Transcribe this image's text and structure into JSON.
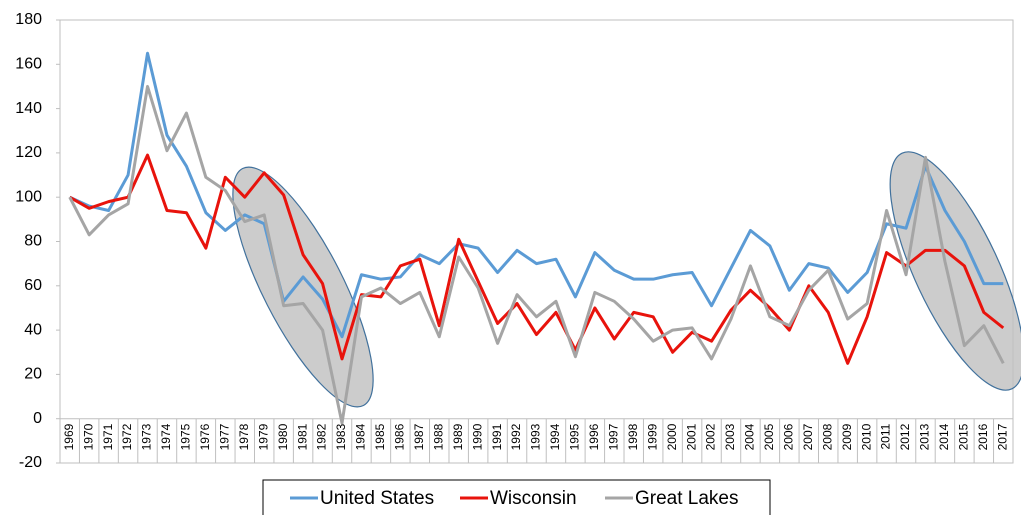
{
  "chart_data": {
    "type": "line",
    "categories": [
      "1969",
      "1970",
      "1971",
      "1972",
      "1973",
      "1974",
      "1975",
      "1976",
      "1977",
      "1978",
      "1979",
      "1980",
      "1981",
      "1982",
      "1983",
      "1984",
      "1985",
      "1986",
      "1987",
      "1988",
      "1989",
      "1990",
      "1991",
      "1992",
      "1993",
      "1994",
      "1995",
      "1996",
      "1997",
      "1998",
      "1999",
      "2000",
      "2001",
      "2002",
      "2003",
      "2004",
      "2005",
      "2006",
      "2007",
      "2008",
      "2009",
      "2010",
      "2011",
      "2012",
      "2013",
      "2014",
      "2015",
      "2016",
      "2017"
    ],
    "series": [
      {
        "name": "United States",
        "color": "#5b9bd5",
        "values": [
          100,
          96,
          94,
          110,
          165,
          128,
          114,
          93,
          85,
          92,
          88,
          53,
          64,
          54,
          37,
          65,
          63,
          64,
          74,
          70,
          79,
          77,
          66,
          76,
          70,
          72,
          55,
          75,
          67,
          63,
          63,
          65,
          66,
          51,
          68,
          85,
          78,
          58,
          70,
          68,
          57,
          66,
          88,
          86,
          114,
          94,
          80,
          61,
          61
        ]
      },
      {
        "name": "Wisconsin",
        "color": "#e8130c",
        "values": [
          100,
          95,
          98,
          100,
          119,
          94,
          93,
          77,
          109,
          100,
          111,
          101,
          74,
          61,
          27,
          56,
          55,
          69,
          72,
          42,
          81,
          62,
          43,
          52,
          38,
          48,
          31,
          50,
          36,
          48,
          46,
          30,
          39,
          35,
          49,
          58,
          50,
          40,
          60,
          48,
          25,
          46,
          75,
          69,
          76,
          76,
          69,
          48,
          41
        ]
      },
      {
        "name": "Great Lakes",
        "color": "#a5a5a5",
        "values": [
          100,
          83,
          92,
          97,
          150,
          121,
          138,
          109,
          103,
          89,
          92,
          51,
          52,
          40,
          -2,
          55,
          59,
          52,
          57,
          37,
          73,
          59,
          34,
          56,
          46,
          53,
          28,
          57,
          53,
          45,
          35,
          40,
          41,
          27,
          45,
          69,
          46,
          42,
          58,
          67,
          45,
          52,
          94,
          65,
          118,
          71,
          33,
          42,
          25
        ]
      }
    ],
    "ylim": [
      -20,
      180
    ],
    "yticks": [
      -20,
      0,
      20,
      40,
      60,
      80,
      100,
      120,
      140,
      160,
      180
    ],
    "legend": "bottom"
  }
}
